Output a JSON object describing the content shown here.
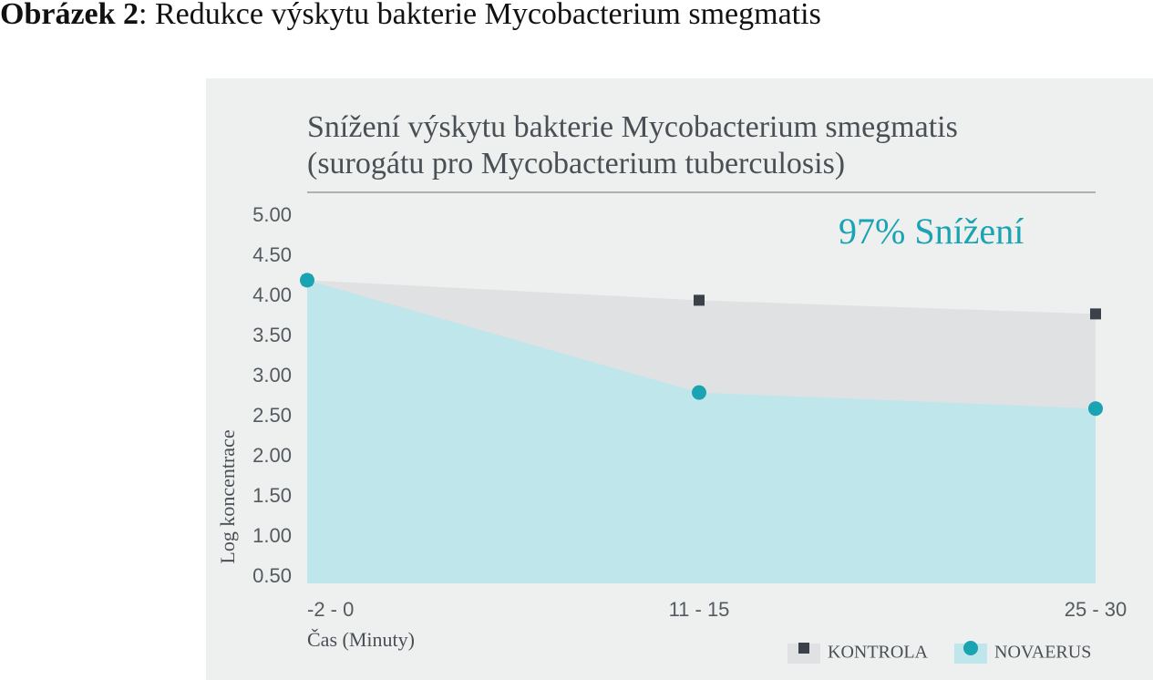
{
  "figure_label": "Obrázek 2",
  "figure_caption": ": Redukce výskytu bakterie Mycobacterium smegmatis",
  "chart_data": {
    "type": "area",
    "title": [
      "Snížení výskytu bakterie Mycobacterium smegmatis",
      "(surogátu pro Mycobacterium tuberculosis)"
    ],
    "annotation": "97% Snížení",
    "y_label": "Log koncentrace",
    "x_label": "Čas (Minuty)",
    "categories": [
      "-2 - 0",
      "11 - 15",
      "25 - 30"
    ],
    "series": [
      {
        "name": "KONTROLA",
        "color": "#3a4148",
        "area_color": "#e0e1e3",
        "marker": "square",
        "values": [
          4.2,
          3.95,
          3.78
        ]
      },
      {
        "name": "NOVAERUS",
        "color": "#1aa3b3",
        "area_color": "#bfe6ea",
        "marker": "circle",
        "values": [
          4.2,
          2.8,
          2.6
        ]
      }
    ],
    "ylim": [
      0.5,
      5.0
    ],
    "yticks": [
      {
        "value": 0.5,
        "label": "0.50"
      },
      {
        "value": 1.0,
        "label": "1.00"
      },
      {
        "value": 1.5,
        "label": "1.50"
      },
      {
        "value": 2.0,
        "label": "2.00"
      },
      {
        "value": 2.5,
        "label": "2.50"
      },
      {
        "value": 3.0,
        "label": "3.00"
      },
      {
        "value": 3.5,
        "label": "3.50"
      },
      {
        "value": 4.0,
        "label": "4.00"
      },
      {
        "value": 4.5,
        "label": "4.50"
      },
      {
        "value": 5.0,
        "label": "5.00"
      }
    ],
    "legend": "bottom-right"
  }
}
